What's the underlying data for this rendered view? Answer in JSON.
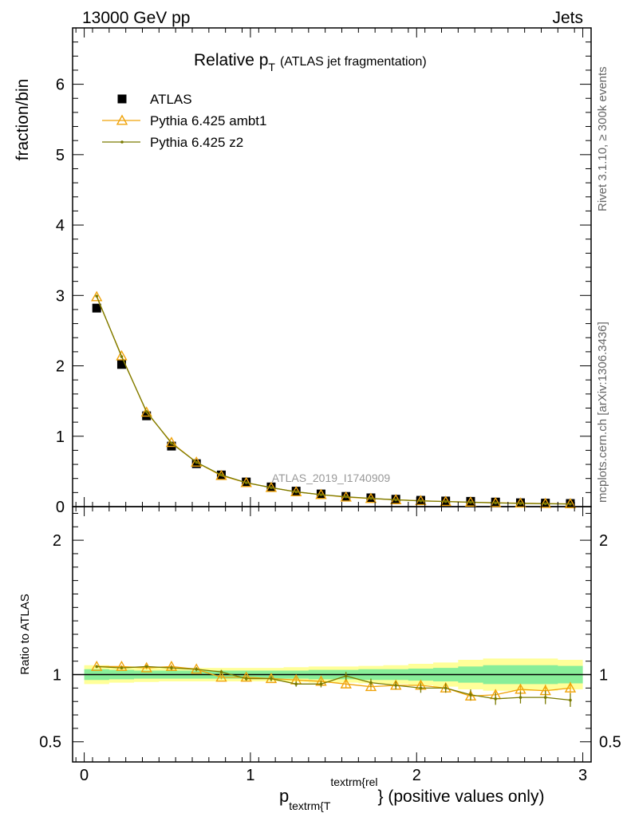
{
  "header": {
    "left": "13000 GeV pp",
    "right": "Jets"
  },
  "side_text": {
    "top": "Rivet 3.1.10, ≥ 300k events",
    "bottom": "mcplots.cern.ch [arXiv:1306.3436]"
  },
  "watermark": "ATLAS_2019_I1740909",
  "chart_data": [
    {
      "type": "line",
      "title": "Relative p",
      "title_sub": "T",
      "title_suffix": "(ATLAS jet fragmentation)",
      "ylabel": "fraction/bin",
      "xlabel_main": "p",
      "xlabel_sub": "textrm{T",
      "xlabel_sup": "textrm{rel",
      "xlabel_suffix": "} (positive values only)",
      "xlim": [
        -0.07,
        3.05
      ],
      "ylim": [
        0,
        6.8
      ],
      "xticks": [
        "0",
        "1",
        "2",
        "3"
      ],
      "yticks": [
        "0",
        "1",
        "2",
        "3",
        "4",
        "5",
        "6"
      ],
      "x": [
        0.075,
        0.225,
        0.375,
        0.525,
        0.675,
        0.825,
        0.975,
        1.125,
        1.275,
        1.425,
        1.575,
        1.725,
        1.875,
        2.025,
        2.175,
        2.325,
        2.475,
        2.625,
        2.775,
        2.925
      ],
      "series": [
        {
          "name": "ATLAS",
          "color": "#000000",
          "marker": "square",
          "values": [
            2.82,
            2.02,
            1.29,
            0.86,
            0.61,
            0.45,
            0.35,
            0.28,
            0.22,
            0.18,
            0.145,
            0.125,
            0.105,
            0.09,
            0.08,
            0.075,
            0.065,
            0.055,
            0.05,
            0.045
          ]
        },
        {
          "name": "Pythia 6.425 ambt1",
          "color": "#f0a30a",
          "marker": "triangle",
          "values": [
            2.98,
            2.14,
            1.34,
            0.91,
            0.63,
            0.44,
            0.34,
            0.27,
            0.21,
            0.17,
            0.135,
            0.115,
            0.097,
            0.083,
            0.072,
            0.063,
            0.055,
            0.049,
            0.044,
            0.04
          ]
        },
        {
          "name": "Pythia 6.425 z2",
          "color": "#7a7a00",
          "marker": "dot",
          "values": [
            2.99,
            2.13,
            1.35,
            0.9,
            0.63,
            0.45,
            0.34,
            0.27,
            0.21,
            0.17,
            0.14,
            0.118,
            0.097,
            0.082,
            0.072,
            0.063,
            0.053,
            0.046,
            0.042,
            0.037
          ]
        }
      ]
    },
    {
      "type": "line",
      "ylabel": "Ratio to ATLAS",
      "xlim": [
        -0.07,
        3.05
      ],
      "ylim": [
        0.35,
        2.25
      ],
      "yticks": [
        "0.5",
        "1",
        "2"
      ],
      "x": [
        0.075,
        0.225,
        0.375,
        0.525,
        0.675,
        0.825,
        0.975,
        1.125,
        1.275,
        1.425,
        1.575,
        1.725,
        1.875,
        2.025,
        2.175,
        2.325,
        2.475,
        2.625,
        2.775,
        2.925
      ],
      "band_inner": [
        0.04,
        0.035,
        0.03,
        0.03,
        0.03,
        0.03,
        0.03,
        0.03,
        0.03,
        0.035,
        0.035,
        0.04,
        0.04,
        0.045,
        0.05,
        0.06,
        0.07,
        0.07,
        0.07,
        0.065
      ],
      "band_outer": [
        0.07,
        0.06,
        0.055,
        0.05,
        0.05,
        0.05,
        0.05,
        0.05,
        0.055,
        0.06,
        0.06,
        0.065,
        0.07,
        0.08,
        0.09,
        0.11,
        0.12,
        0.12,
        0.12,
        0.11
      ],
      "series": [
        {
          "name": "Pythia 6.425 ambt1",
          "color": "#f0a30a",
          "marker": "triangle",
          "values": [
            1.06,
            1.06,
            1.05,
            1.06,
            1.04,
            0.98,
            0.98,
            0.97,
            0.96,
            0.95,
            0.93,
            0.91,
            0.92,
            0.92,
            0.9,
            0.84,
            0.85,
            0.89,
            0.88,
            0.9
          ],
          "errors": [
            0.01,
            0.01,
            0.01,
            0.015,
            0.015,
            0.015,
            0.015,
            0.015,
            0.02,
            0.02,
            0.025,
            0.025,
            0.03,
            0.03,
            0.03,
            0.035,
            0.04,
            0.04,
            0.045,
            0.045
          ]
        },
        {
          "name": "Pythia 6.425 z2",
          "color": "#7a7a00",
          "marker": "dot",
          "values": [
            1.06,
            1.05,
            1.06,
            1.05,
            1.04,
            1.02,
            0.97,
            0.97,
            0.93,
            0.93,
            0.99,
            0.94,
            0.92,
            0.9,
            0.9,
            0.85,
            0.82,
            0.83,
            0.83,
            0.81
          ],
          "errors": [
            0.01,
            0.01,
            0.01,
            0.015,
            0.015,
            0.015,
            0.015,
            0.02,
            0.02,
            0.025,
            0.03,
            0.03,
            0.03,
            0.035,
            0.035,
            0.04,
            0.045,
            0.045,
            0.05,
            0.05
          ]
        }
      ]
    }
  ]
}
